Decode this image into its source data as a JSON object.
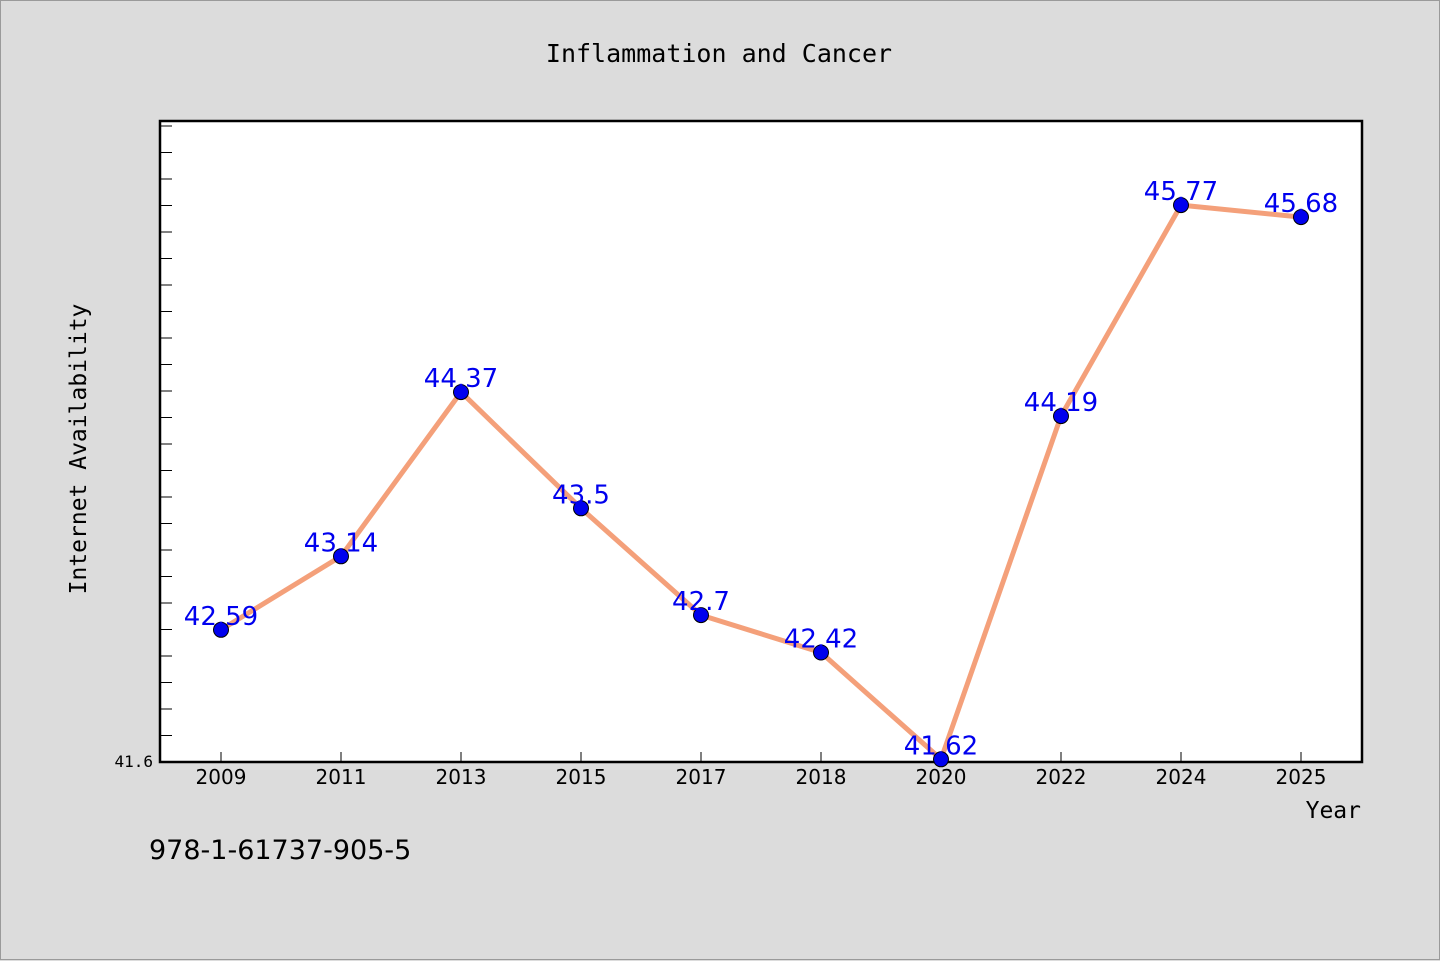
{
  "chart_data": {
    "type": "line",
    "title": "Inflammation and Cancer",
    "xlabel": "Year",
    "ylabel": "Internet Availability",
    "categories": [
      "2009",
      "2011",
      "2013",
      "2015",
      "2017",
      "2018",
      "2020",
      "2022",
      "2024",
      "2025"
    ],
    "values": [
      42.59,
      43.14,
      44.37,
      43.5,
      42.7,
      42.42,
      41.62,
      44.19,
      45.77,
      45.68
    ],
    "data_labels": [
      "42.59",
      "43.14",
      "44.37",
      "43.5",
      "42.7",
      "42.42",
      "41.62",
      "44.19",
      "45.77",
      "45.68"
    ],
    "ylim": [
      41.6,
      46.4
    ],
    "y_tick_label": "41.6",
    "grid": false,
    "legend": "none",
    "line_color": "#f4a07a",
    "marker_color": "#0000ee",
    "label_color": "#0000ee"
  },
  "footer": {
    "code": "978-1-61737-905-5"
  }
}
